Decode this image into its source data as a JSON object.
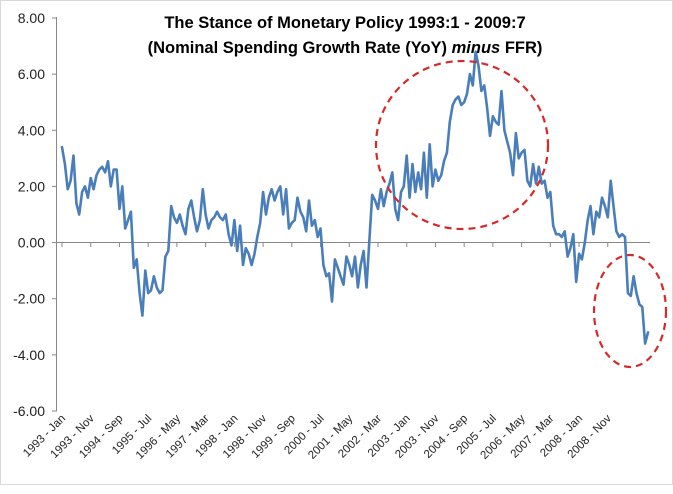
{
  "chart_data": {
    "type": "line",
    "title_line1": "The Stance of Monetary Policy 1993:1 - 2009:7",
    "title_line2_before": "(Nominal Spending Growth Rate (YoY) ",
    "title_line2_italic": "minus",
    "title_line2_after": " FFR)",
    "xlabel": "",
    "ylabel": "",
    "ylim": [
      -6,
      8
    ],
    "y_ticks": [
      "8.00",
      "6.00",
      "4.00",
      "2.00",
      "0.00",
      "-2.00",
      "-4.00",
      "-6.00"
    ],
    "x_tick_labels": [
      "1993 - Jan",
      "1993 - Nov",
      "1994 - Sep",
      "1995 - Jul",
      "1996 - May",
      "1997 - Mar",
      "1998 - Jan",
      "1998 - Nov",
      "1999 - Sep",
      "2000 - Jul",
      "2001 - May",
      "2002 - Mar",
      "2003 - Jan",
      "2003 - Nov",
      "2004 - Sep",
      "2005 - Jul",
      "2006 - May",
      "2007 - Mar",
      "2008 - Jan",
      "2008 - Nov"
    ],
    "grid": false,
    "legend": "none",
    "line_color": "#4a7ebb",
    "annotation_color": "#d62a2a",
    "series": [
      {
        "values": [
          3.4,
          2.8,
          1.9,
          2.2,
          3.1,
          1.4,
          1.0,
          1.8,
          2.0,
          1.6,
          2.3,
          1.9,
          2.4,
          2.6,
          2.7,
          2.5,
          2.9,
          2.0,
          2.6,
          2.6,
          1.2,
          2.0,
          0.5,
          0.8,
          1.1,
          -0.9,
          -0.6,
          -1.8,
          -2.6,
          -1.0,
          -1.8,
          -1.7,
          -1.2,
          -1.6,
          -1.8,
          -1.7,
          -0.5,
          -0.3,
          1.3,
          0.9,
          0.7,
          1.0,
          0.6,
          0.3,
          1.2,
          1.5,
          0.9,
          0.4,
          0.8,
          1.9,
          1.0,
          0.5,
          0.8,
          0.9,
          1.1,
          0.9,
          0.8,
          1.0,
          0.3,
          -0.1,
          0.8,
          -0.3,
          0.6,
          -0.8,
          -0.2,
          -0.4,
          -0.8,
          -0.4,
          0.2,
          0.7,
          1.8,
          1.0,
          1.6,
          1.9,
          1.5,
          1.8,
          2.0,
          1.0,
          1.9,
          0.5,
          0.7,
          0.8,
          1.6,
          1.1,
          0.9,
          0.4,
          1.5,
          0.6,
          0.8,
          0.2,
          0.5,
          -0.8,
          -1.2,
          -1.1,
          -2.1,
          -0.6,
          -0.9,
          -1.2,
          -1.5,
          -0.5,
          -0.8,
          -1.2,
          -0.5,
          -1.6,
          -0.8,
          -0.3,
          -1.6,
          0.1,
          1.7,
          1.5,
          1.2,
          1.9,
          1.3,
          1.8,
          2.1,
          2.5,
          1.2,
          0.8,
          1.8,
          2.0,
          3.1,
          1.6,
          2.8,
          1.8,
          2.5,
          1.9,
          3.2,
          1.6,
          3.5,
          2.0,
          2.6,
          2.2,
          2.4,
          2.9,
          3.2,
          4.3,
          4.9,
          5.1,
          5.2,
          4.9,
          5.0,
          5.3,
          6.0,
          5.6,
          6.8,
          6.3,
          5.4,
          5.6,
          4.8,
          3.8,
          4.5,
          4.3,
          4.2,
          5.4,
          4.0,
          3.6,
          3.2,
          2.4,
          3.9,
          3.0,
          3.2,
          3.3,
          2.2,
          2.0,
          2.8,
          2.1,
          2.7,
          2.1,
          2.2,
          1.6,
          1.8,
          0.6,
          0.3,
          0.3,
          0.2,
          0.4,
          -0.5,
          -0.2,
          0.3,
          -1.4,
          -0.4,
          -0.6,
          0.0,
          0.8,
          1.3,
          0.3,
          1.1,
          0.9,
          1.6,
          1.3,
          0.9,
          2.2,
          1.3,
          0.4,
          0.2,
          0.3,
          0.2,
          -1.8,
          -1.9,
          -1.2,
          -1.8,
          -2.2,
          -2.3,
          -3.6,
          -3.2
        ]
      }
    ]
  }
}
